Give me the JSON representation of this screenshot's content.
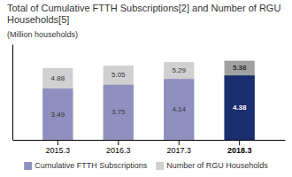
{
  "chart_data": {
    "type": "bar",
    "title": "Total of Cumulative FTTH Subscriptions[2] and Number of RGU Households[5]",
    "ylabel": "(Million households)",
    "categories": [
      "2015.3",
      "2016.3",
      "2017.3",
      "2018.3"
    ],
    "series": [
      {
        "name": "Cumulative FTTH Subscriptions",
        "colors": [
          "#9090c0",
          "#9090c0",
          "#9090c0",
          "#1a2d6e"
        ],
        "values": [
          3.49,
          3.75,
          4.14,
          4.38
        ]
      },
      {
        "name": "Number of RGU Households",
        "colors": [
          "#d0d0d0",
          "#d0d0d0",
          "#d0d0d0",
          "#a0a0a0"
        ],
        "values": [
          4.88,
          5.05,
          5.29,
          5.38
        ]
      }
    ],
    "ylim": [
      0,
      6.5
    ],
    "tick_labels": "x",
    "data_labels": true,
    "grid": false
  }
}
